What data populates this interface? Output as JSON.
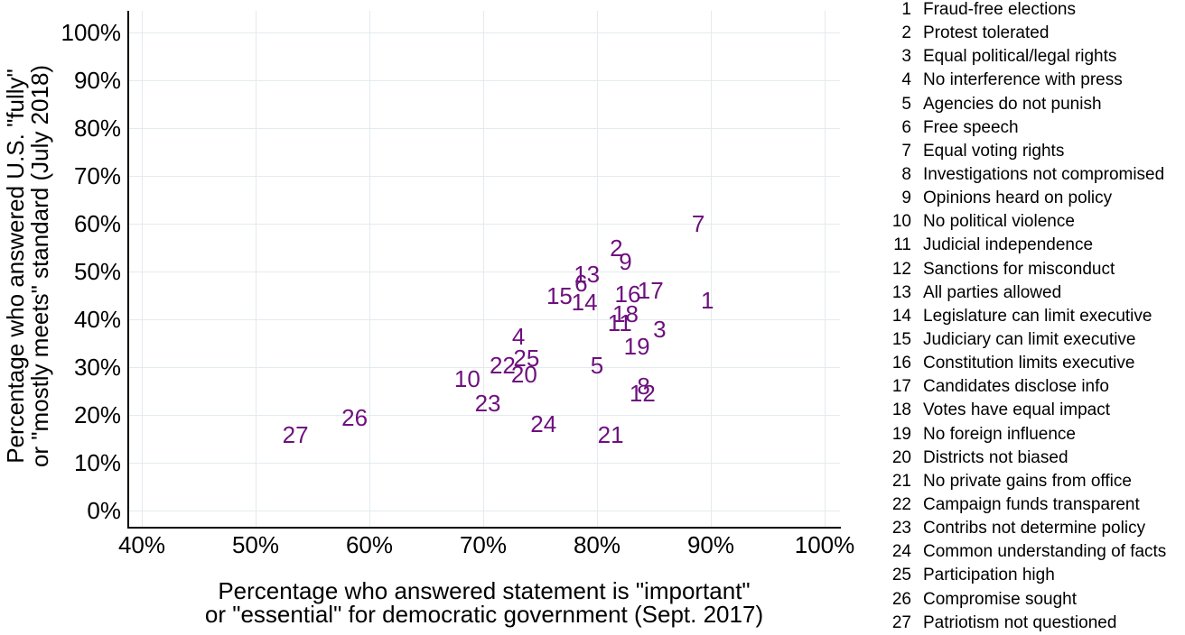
{
  "figure": {
    "x_axis_title_line1": "Percentage who answered statement is \"important\"",
    "x_axis_title_line2": "or \"essential\" for democratic government (Sept. 2017)",
    "y_axis_title_line1": "Percentage who answered U.S. \"fully\"",
    "y_axis_title_line2": "or \"mostly meets\" standard (July 2018)"
  },
  "colors": {
    "marker": "#6e107e",
    "gridline": "#e4ebee",
    "axis": "#000000",
    "text": "#000000",
    "background": "#ffffff"
  },
  "chart_data": {
    "type": "scatter",
    "title": "",
    "xlabel": "Percentage who answered statement is \"important\" or \"essential\" for democratic government (Sept. 2017)",
    "ylabel": "Percentage who answered U.S. \"fully\" or \"mostly meets\" standard (July 2018)",
    "xlim": [
      40,
      100
    ],
    "ylim": [
      0,
      100
    ],
    "x_ticks": [
      40,
      50,
      60,
      70,
      80,
      90,
      100
    ],
    "y_ticks": [
      0,
      10,
      20,
      30,
      40,
      50,
      60,
      70,
      80,
      90,
      100
    ],
    "tick_suffix": "%",
    "grid": true,
    "legend_position": "right",
    "marker_style": "numeric-label",
    "points": [
      {
        "id": 1,
        "label": "Fraud-free elections",
        "x": 89.7,
        "y": 44
      },
      {
        "id": 2,
        "label": "Protest tolerated",
        "x": 81.7,
        "y": 55
      },
      {
        "id": 3,
        "label": "Equal political/legal rights",
        "x": 85.5,
        "y": 38
      },
      {
        "id": 4,
        "label": "No interference with press",
        "x": 73.1,
        "y": 36.4
      },
      {
        "id": 5,
        "label": "Agencies do not punish",
        "x": 80,
        "y": 30.3
      },
      {
        "id": 6,
        "label": "Free speech",
        "x": 78.6,
        "y": 47.5
      },
      {
        "id": 7,
        "label": "Equal voting rights",
        "x": 88.9,
        "y": 60
      },
      {
        "id": 8,
        "label": "Investigations not compromised",
        "x": 84.1,
        "y": 26
      },
      {
        "id": 9,
        "label": "Opinions heard on policy",
        "x": 82.5,
        "y": 52
      },
      {
        "id": 10,
        "label": "No political violence",
        "x": 68.6,
        "y": 27.5
      },
      {
        "id": 11,
        "label": "Judicial independence",
        "x": 82,
        "y": 39.3
      },
      {
        "id": 12,
        "label": "Sanctions for misconduct",
        "x": 84,
        "y": 24.5
      },
      {
        "id": 13,
        "label": "All parties allowed",
        "x": 79.1,
        "y": 49.4
      },
      {
        "id": 14,
        "label": "Legislature can limit executive",
        "x": 78.9,
        "y": 43.5
      },
      {
        "id": 15,
        "label": "Judiciary can limit executive",
        "x": 76.7,
        "y": 45
      },
      {
        "id": 16,
        "label": "Constitution limits executive",
        "x": 82.7,
        "y": 45.3
      },
      {
        "id": 17,
        "label": "Candidates disclose info",
        "x": 84.7,
        "y": 46
      },
      {
        "id": 18,
        "label": "Votes have equal impact",
        "x": 82.5,
        "y": 41.2
      },
      {
        "id": 19,
        "label": "No foreign influence",
        "x": 83.5,
        "y": 34.4
      },
      {
        "id": 20,
        "label": "Districts not biased",
        "x": 73.6,
        "y": 28.5
      },
      {
        "id": 21,
        "label": "No private gains from office",
        "x": 81.2,
        "y": 15.8
      },
      {
        "id": 22,
        "label": "Campaign funds transparent",
        "x": 71.7,
        "y": 30.4
      },
      {
        "id": 23,
        "label": "Contribs not determine policy",
        "x": 70.4,
        "y": 22.5
      },
      {
        "id": 24,
        "label": "Common understanding of facts",
        "x": 75.3,
        "y": 18.1
      },
      {
        "id": 25,
        "label": "Participation high",
        "x": 73.8,
        "y": 31.9
      },
      {
        "id": 26,
        "label": "Compromise sought",
        "x": 58.7,
        "y": 19.4
      },
      {
        "id": 27,
        "label": "Patriotism not questioned",
        "x": 53.5,
        "y": 15.8
      }
    ]
  }
}
